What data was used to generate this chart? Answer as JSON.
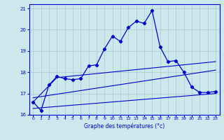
{
  "title": "Graphe des températures (°c)",
  "bg_color": "#cce8ec",
  "grid_color": "#aac8cc",
  "line_color": "#0000cc",
  "xlim": [
    -0.5,
    23.5
  ],
  "ylim": [
    16.0,
    21.2
  ],
  "yticks": [
    16,
    17,
    18,
    19,
    20,
    21
  ],
  "xticks": [
    0,
    1,
    2,
    3,
    4,
    5,
    6,
    7,
    8,
    9,
    10,
    11,
    12,
    13,
    14,
    15,
    16,
    17,
    18,
    19,
    20,
    21,
    22,
    23
  ],
  "main_series": [
    [
      0,
      16.6
    ],
    [
      1,
      16.2
    ],
    [
      2,
      17.4
    ],
    [
      3,
      17.8
    ],
    [
      4,
      17.7
    ],
    [
      5,
      17.65
    ],
    [
      6,
      17.7
    ],
    [
      7,
      18.3
    ],
    [
      8,
      18.35
    ],
    [
      9,
      19.1
    ],
    [
      10,
      19.7
    ],
    [
      11,
      19.45
    ],
    [
      12,
      20.1
    ],
    [
      13,
      20.4
    ],
    [
      14,
      20.3
    ],
    [
      15,
      20.9
    ],
    [
      16,
      19.2
    ],
    [
      17,
      18.5
    ],
    [
      18,
      18.55
    ],
    [
      19,
      18.0
    ],
    [
      20,
      17.3
    ],
    [
      21,
      17.05
    ],
    [
      22,
      17.05
    ],
    [
      23,
      17.1
    ]
  ],
  "line2": [
    [
      0,
      16.6
    ],
    [
      3,
      17.75
    ],
    [
      23,
      18.5
    ]
  ],
  "line3": [
    [
      0,
      16.8
    ],
    [
      23,
      18.1
    ]
  ],
  "line4": [
    [
      0,
      16.3
    ],
    [
      23,
      17.0
    ]
  ]
}
